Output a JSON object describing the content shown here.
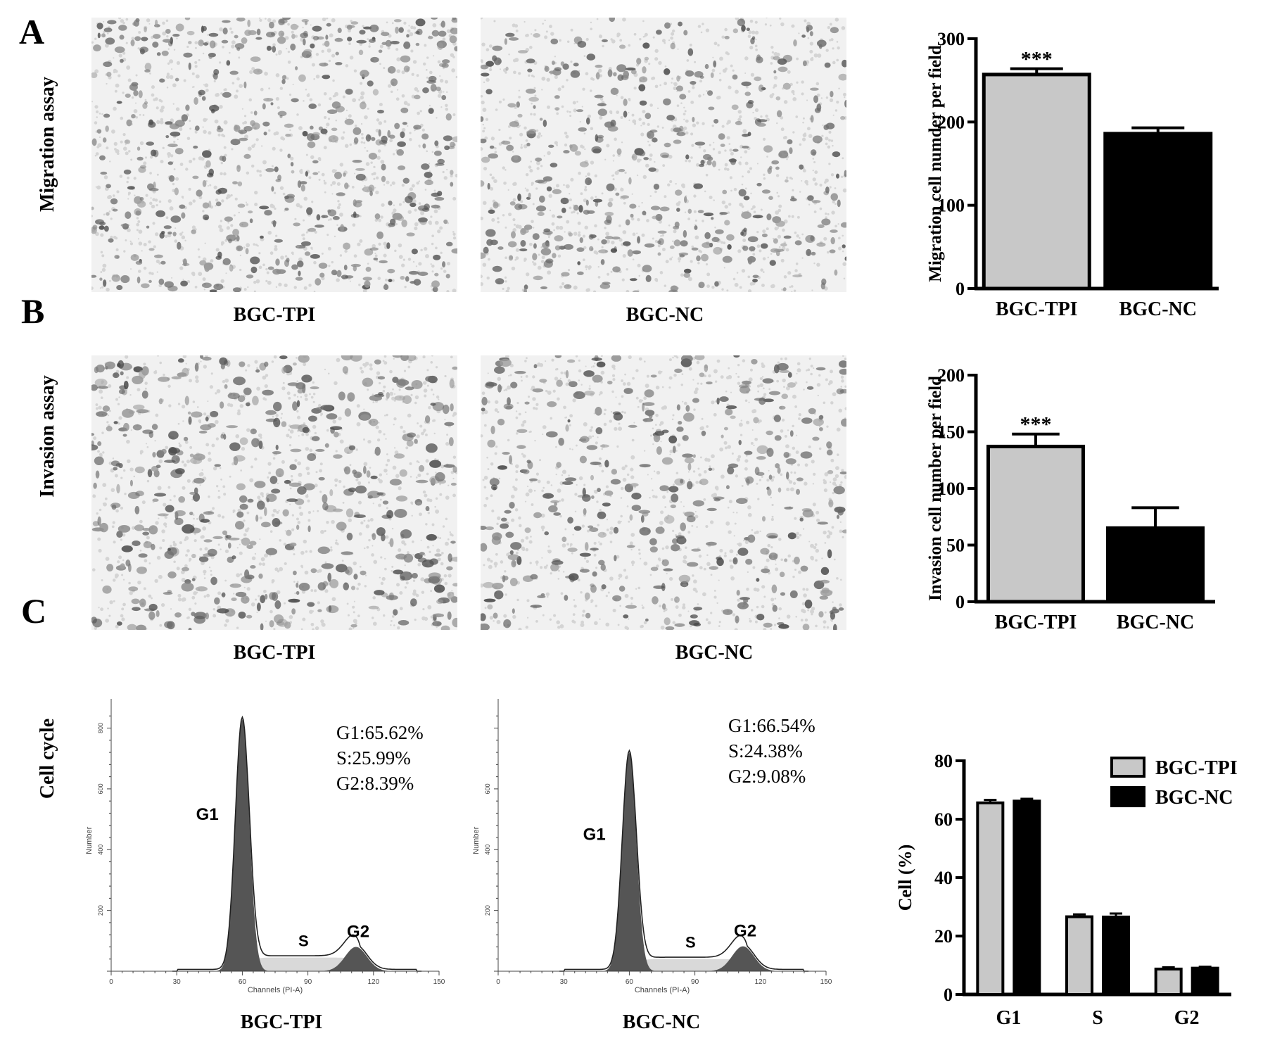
{
  "panels": {
    "A": {
      "letter": "A",
      "row_label": "Migration assay",
      "image_captions": [
        "BGC-TPI",
        "BGC-NC"
      ]
    },
    "B": {
      "letter": "B",
      "row_label": "Invasion assay",
      "image_captions": [
        "BGC-TPI",
        "BGC-NC"
      ]
    },
    "C": {
      "letter": "C",
      "row_label": "Cell cycle",
      "histograms": [
        {
          "caption": "BGC-TPI",
          "stats": [
            "G1:65.62%",
            "S:25.99%",
            "G2:8.39%"
          ],
          "peak_labels": [
            "G1",
            "S",
            "G2"
          ],
          "xlabel": "Channels (PI-A)",
          "ylabel": "Number",
          "x_ticks": [
            "0",
            "30",
            "60",
            "90",
            "120",
            "150"
          ],
          "y_ticks": [
            "200",
            "400",
            "600",
            "800"
          ],
          "g1_peak": 830,
          "s_level": 45,
          "g2_peak": 80
        },
        {
          "caption": "BGC-NC",
          "stats": [
            "G1:66.54%",
            "S:24.38%",
            "G2:9.08%"
          ],
          "peak_labels": [
            "G1",
            "S",
            "G2"
          ],
          "xlabel": "Channels (PI-A)",
          "ylabel": "Number",
          "x_ticks": [
            "0",
            "30",
            "60",
            "90",
            "120",
            "150"
          ],
          "y_ticks": [
            "200",
            "400",
            "600"
          ],
          "g1_peak": 720,
          "s_level": 40,
          "g2_peak": 82
        }
      ]
    }
  },
  "chart_data": [
    {
      "type": "bar",
      "ylabel": "Migration cell numder per field",
      "categories": [
        "BGC-TPI",
        "BGC-NC"
      ],
      "values": [
        257,
        186
      ],
      "errors": [
        7,
        7
      ],
      "colors": [
        "#c8c8c8",
        "#000000"
      ],
      "ylim": [
        0,
        300
      ],
      "yticks": [
        0,
        100,
        200,
        300
      ],
      "annotations": [
        "***",
        ""
      ]
    },
    {
      "type": "bar",
      "ylabel": "Invasion cell number per field",
      "categories": [
        "BGC-TPI",
        "BGC-NC"
      ],
      "values": [
        137,
        65
      ],
      "errors": [
        11,
        18
      ],
      "colors": [
        "#c8c8c8",
        "#000000"
      ],
      "ylim": [
        0,
        200
      ],
      "yticks": [
        0,
        50,
        100,
        150,
        200
      ],
      "annotations": [
        "***",
        ""
      ]
    },
    {
      "type": "bar",
      "ylabel": "Cell (%)",
      "categories": [
        "G1",
        "S",
        "G2"
      ],
      "series": [
        {
          "name": "BGC-TPI",
          "values": [
            65.6,
            26.6,
            8.7
          ],
          "errors": [
            1.0,
            0.8,
            0.6
          ],
          "color": "#c8c8c8"
        },
        {
          "name": "BGC-NC",
          "values": [
            66.2,
            26.5,
            9.0
          ],
          "errors": [
            0.8,
            1.2,
            0.5
          ],
          "color": "#000000"
        }
      ],
      "ylim": [
        0,
        80
      ],
      "yticks": [
        0,
        20,
        40,
        60,
        80
      ],
      "legend": "top-right"
    }
  ]
}
